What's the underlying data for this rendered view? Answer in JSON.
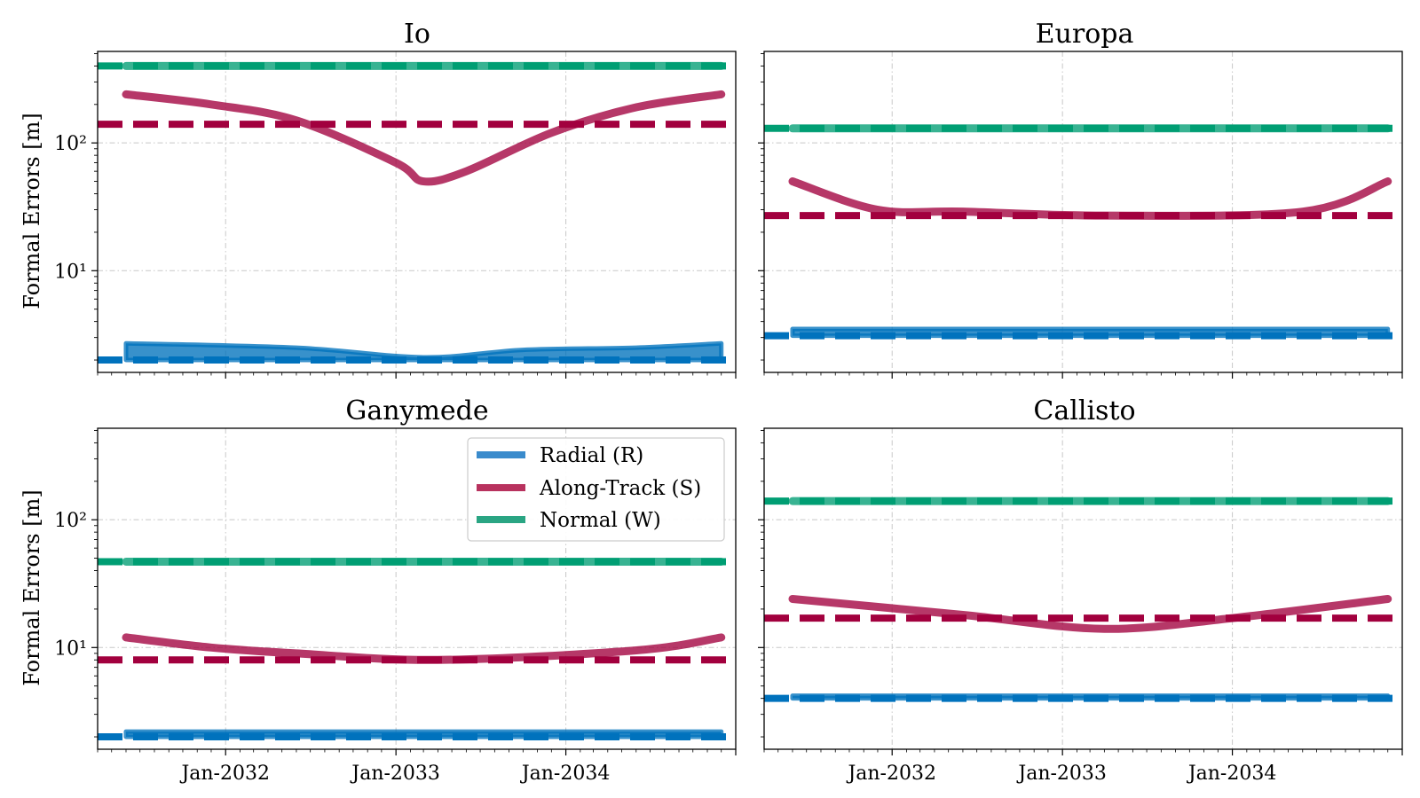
{
  "chart_data": [
    {
      "type": "line",
      "title": "Io",
      "ylabel": "Formal Errors [m]",
      "yscale": "log",
      "ylim": [
        1.6,
        520
      ],
      "x_ticks": [
        "Jan-2032",
        "Jan-2033",
        "Jan-2034"
      ],
      "y_ticks": [
        {
          "value": 10,
          "label": "10¹"
        },
        {
          "value": 100,
          "label": "10²"
        }
      ],
      "grid": true,
      "series": [
        {
          "name": "Radial (R)",
          "color": "#0072bd",
          "x": [
            "2031-06",
            "2032-06",
            "2033-03",
            "2033-10",
            "2034-06",
            "2034-12"
          ],
          "y_low": [
            2.0,
            2.0,
            2.0,
            2.0,
            2.0,
            2.0
          ],
          "y_high": [
            2.7,
            2.5,
            2.1,
            2.4,
            2.5,
            2.7
          ],
          "constant": 2.0
        },
        {
          "name": "Along-Track (S)",
          "color": "#a2003e",
          "x": [
            "2031-06",
            "2031-12",
            "2032-06",
            "2033-01",
            "2033-03",
            "2033-06",
            "2033-12",
            "2034-06",
            "2034-12"
          ],
          "y": [
            240,
            200,
            150,
            70,
            50,
            60,
            120,
            190,
            240
          ],
          "constant": 140
        },
        {
          "name": "Normal (W)",
          "color": "#009e73",
          "x": [
            "2031-06",
            "2034-12"
          ],
          "y": [
            400,
            400
          ],
          "constant": 400
        }
      ]
    },
    {
      "type": "line",
      "title": "Europa",
      "ylabel": "",
      "yscale": "log",
      "ylim": [
        1.6,
        520
      ],
      "x_ticks": [
        "Jan-2032",
        "Jan-2033",
        "Jan-2034"
      ],
      "y_ticks": [],
      "grid": true,
      "series": [
        {
          "name": "Radial (R)",
          "color": "#0072bd",
          "x": [
            "2031-06",
            "2034-12"
          ],
          "y_low": [
            3.1,
            3.1
          ],
          "y_high": [
            3.5,
            3.5
          ],
          "constant": 3.1
        },
        {
          "name": "Along-Track (S)",
          "color": "#a2003e",
          "x": [
            "2031-06",
            "2031-12",
            "2032-06",
            "2033-04",
            "2034-06",
            "2034-12"
          ],
          "y": [
            50,
            30,
            29,
            27,
            29,
            50
          ],
          "constant": 27
        },
        {
          "name": "Normal (W)",
          "color": "#009e73",
          "x": [
            "2031-06",
            "2034-12"
          ],
          "y": [
            130,
            130
          ],
          "constant": 130
        }
      ]
    },
    {
      "type": "line",
      "title": "Ganymede",
      "ylabel": "Formal Errors [m]",
      "yscale": "log",
      "ylim": [
        1.6,
        520
      ],
      "x_ticks": [
        "Jan-2032",
        "Jan-2033",
        "Jan-2034"
      ],
      "y_ticks": [
        {
          "value": 10,
          "label": "10¹"
        },
        {
          "value": 100,
          "label": "10²"
        }
      ],
      "grid": true,
      "legend": "upper right",
      "series": [
        {
          "name": "Radial (R)",
          "color": "#0072bd",
          "x": [
            "2031-06",
            "2034-12"
          ],
          "y_low": [
            2.0,
            2.0
          ],
          "y_high": [
            2.2,
            2.2
          ],
          "constant": 2.0
        },
        {
          "name": "Along-Track (S)",
          "color": "#a2003e",
          "x": [
            "2031-06",
            "2031-12",
            "2032-06",
            "2033-04",
            "2034-06",
            "2034-12"
          ],
          "y": [
            12,
            10,
            9,
            8,
            9.5,
            12
          ],
          "constant": 8
        },
        {
          "name": "Normal (W)",
          "color": "#009e73",
          "x": [
            "2031-06",
            "2034-12"
          ],
          "y": [
            47,
            47
          ],
          "constant": 47
        }
      ]
    },
    {
      "type": "line",
      "title": "Callisto",
      "ylabel": "",
      "yscale": "log",
      "ylim": [
        1.6,
        520
      ],
      "x_ticks": [
        "Jan-2032",
        "Jan-2033",
        "Jan-2034"
      ],
      "y_ticks": [],
      "grid": true,
      "series": [
        {
          "name": "Radial (R)",
          "color": "#0072bd",
          "x": [
            "2031-06",
            "2034-12"
          ],
          "y_low": [
            4.0,
            4.0
          ],
          "y_high": [
            4.2,
            4.2
          ],
          "constant": 4.0
        },
        {
          "name": "Along-Track (S)",
          "color": "#a2003e",
          "x": [
            "2031-06",
            "2032-06",
            "2033-04",
            "2034-01",
            "2034-12"
          ],
          "y": [
            24,
            18,
            14,
            17,
            24
          ],
          "constant": 17
        },
        {
          "name": "Normal (W)",
          "color": "#009e73",
          "x": [
            "2031-06",
            "2034-12"
          ],
          "y": [
            140,
            140
          ],
          "constant": 140
        }
      ]
    }
  ],
  "legend": {
    "entries": [
      {
        "label": "Radial (R)",
        "color": "#3a8bcc"
      },
      {
        "label": "Along-Track (S)",
        "color": "#b8325e"
      },
      {
        "label": "Normal (W)",
        "color": "#2aa583"
      }
    ]
  }
}
